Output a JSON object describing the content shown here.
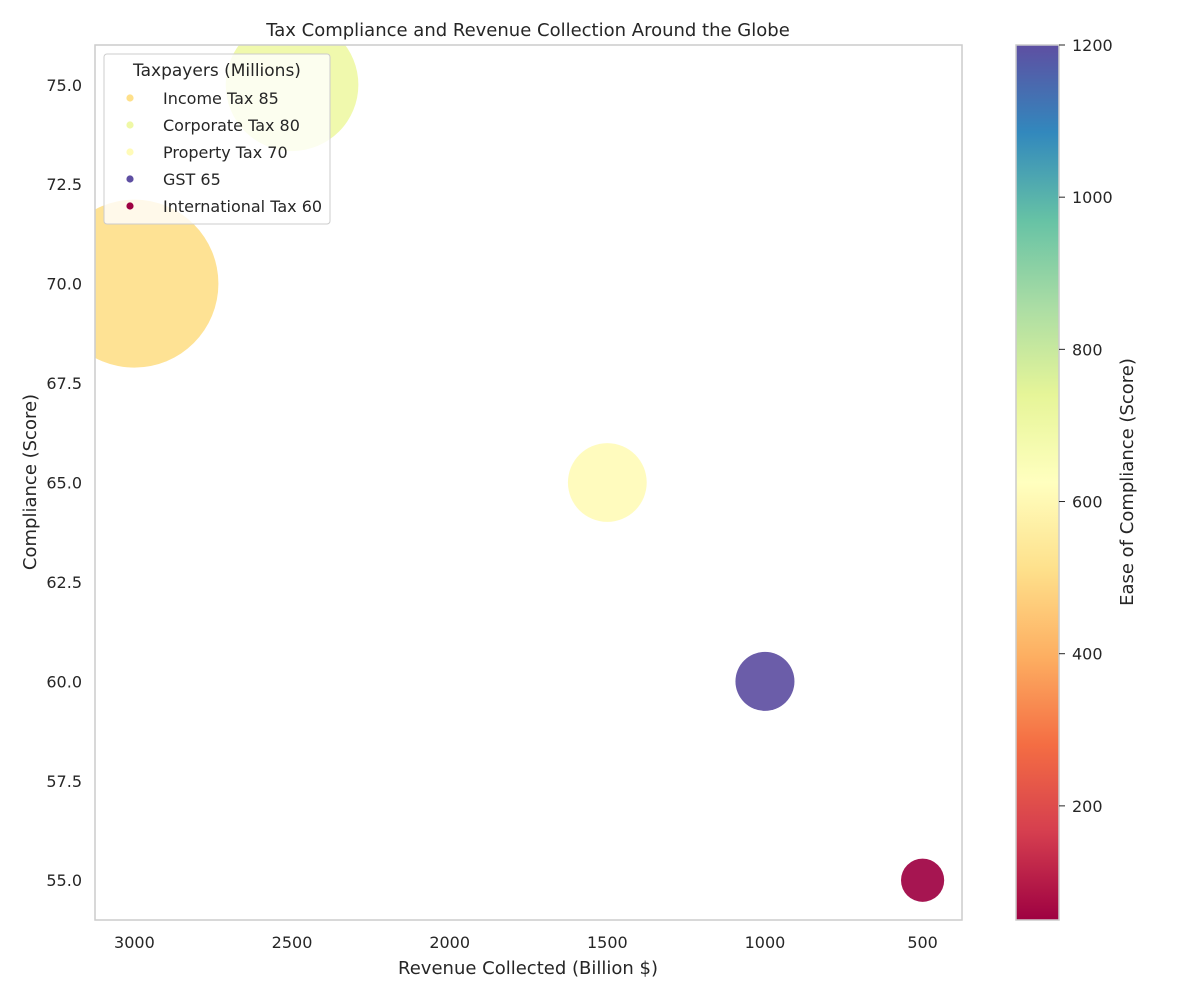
{
  "chart_data": {
    "type": "scatter",
    "title": "Tax Compliance and Revenue Collection Around the Globe",
    "xlabel": "Revenue Collected (Billion $)",
    "ylabel": "Compliance (Score)",
    "xlim": [
      3125,
      375
    ],
    "ylim": [
      54.0,
      76.0
    ],
    "x_inverted": true,
    "grid": false,
    "x_ticks": [
      3000,
      2500,
      2000,
      1500,
      1000,
      500
    ],
    "x_tick_labels": [
      "3000",
      "2500",
      "2000",
      "1500",
      "1000",
      "500"
    ],
    "y_ticks": [
      55.0,
      57.5,
      60.0,
      62.5,
      65.0,
      67.5,
      70.0,
      72.5,
      75.0
    ],
    "y_tick_labels": [
      "55.0",
      "57.5",
      "60.0",
      "62.5",
      "65.0",
      "67.5",
      "70.0",
      "72.5",
      "75.0"
    ],
    "points": [
      {
        "label": "Income Tax 85",
        "x": 3000,
        "y": 70.0,
        "bubble_size": 85,
        "color_value": 450,
        "color": "#fee08b"
      },
      {
        "label": "Corporate Tax 80",
        "x": 2500,
        "y": 75.0,
        "bubble_size": 80,
        "color_value": 700,
        "color": "#eff8a6"
      },
      {
        "label": "Property Tax 70",
        "x": 1500,
        "y": 65.0,
        "bubble_size": 70,
        "color_value": 600,
        "color": "#fffbb8"
      },
      {
        "label": "GST 65",
        "x": 1000,
        "y": 60.0,
        "bubble_size": 65,
        "color_value": 1200,
        "color": "#5e4fa2"
      },
      {
        "label": "International Tax 60",
        "x": 500,
        "y": 55.0,
        "bubble_size": 60,
        "color_value": 50,
        "color": "#9e0142"
      }
    ],
    "legend": {
      "title": "Taxpayers (Millions)",
      "placement": "top-left",
      "entries": [
        "Income Tax 85",
        "Corporate Tax 80",
        "Property Tax 70",
        "GST 65",
        "International Tax 60"
      ]
    },
    "colorbar": {
      "label": "Ease of Compliance (Score)",
      "colormap": "Spectral",
      "range": [
        50,
        1200
      ],
      "ticks": [
        200,
        400,
        600,
        800,
        1000,
        1200
      ],
      "tick_labels": [
        "200",
        "400",
        "600",
        "800",
        "1000",
        "1200"
      ],
      "stops": [
        "#9e0142",
        "#d53e4f",
        "#f46d43",
        "#fdae61",
        "#fee08b",
        "#ffffbf",
        "#e6f598",
        "#abdda4",
        "#66c2a5",
        "#3288bd",
        "#5e4fa2"
      ]
    }
  }
}
